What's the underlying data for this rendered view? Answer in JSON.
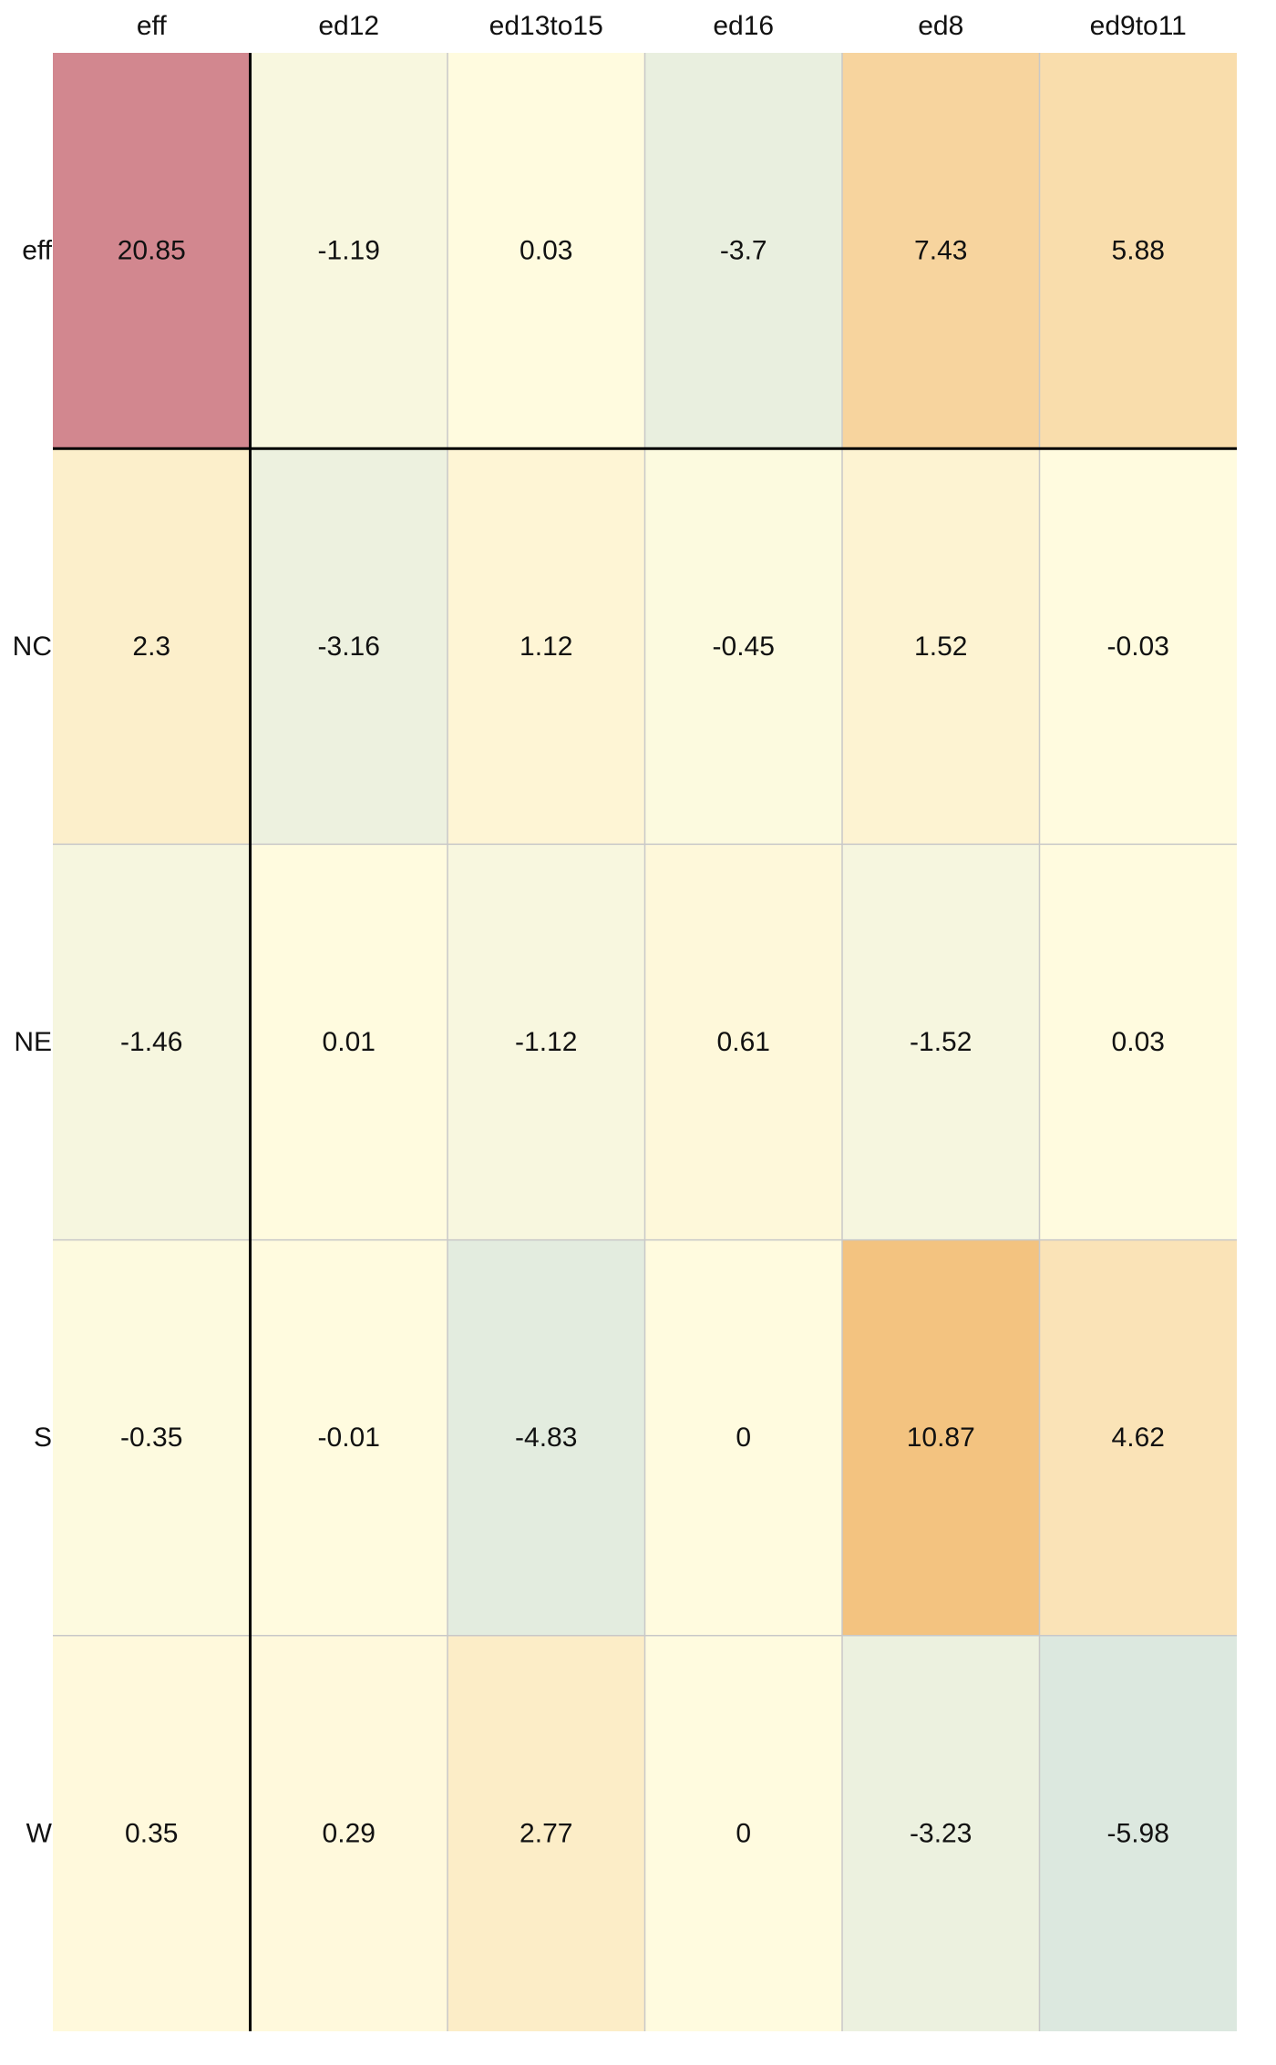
{
  "chart_data": {
    "type": "heatmap",
    "title": "",
    "xlabel": "",
    "ylabel": "",
    "columns": [
      "eff",
      "ed12",
      "ed13to15",
      "ed16",
      "ed8",
      "ed9to11"
    ],
    "rows": [
      "eff",
      "NC",
      "NE",
      "S",
      "W"
    ],
    "values": [
      [
        20.85,
        -1.19,
        0.03,
        -3.7,
        7.43,
        5.88
      ],
      [
        2.3,
        -3.16,
        1.12,
        -0.45,
        1.52,
        -0.03
      ],
      [
        -1.46,
        0.01,
        -1.12,
        0.61,
        -1.52,
        0.03
      ],
      [
        -0.35,
        -0.01,
        -4.83,
        0,
        10.87,
        4.62
      ],
      [
        0.35,
        0.29,
        2.77,
        0,
        -3.23,
        -5.98
      ]
    ],
    "labels": [
      [
        "20.85",
        "-1.19",
        "0.03",
        "-3.7",
        "7.43",
        "5.88"
      ],
      [
        "2.3",
        "-3.16",
        "1.12",
        "-0.45",
        "1.52",
        "-0.03"
      ],
      [
        "-1.46",
        "0.01",
        "-1.12",
        "0.61",
        "-1.52",
        "0.03"
      ],
      [
        "-0.35",
        "-0.01",
        "-4.83",
        "0",
        "10.87",
        "4.62"
      ],
      [
        "0.35",
        "0.29",
        "2.77",
        "0",
        "-3.23",
        "-5.98"
      ]
    ],
    "colors": {
      "negative": "#dce8df",
      "neutral": "#fffbdf",
      "positive_mid": "#f3c27f",
      "positive_high": "#d2868f",
      "grid": "#c8c8c8",
      "divider": "#000000"
    },
    "legend": "none",
    "grid": true
  }
}
